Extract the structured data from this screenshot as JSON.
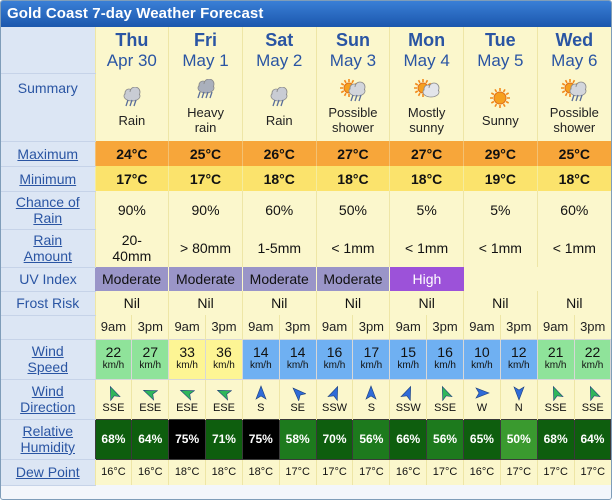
{
  "title": "Gold Coast 7-day Weather Forecast",
  "labels": {
    "summary": "Summary",
    "maximum": "Maximum",
    "minimum": "Minimum",
    "rain_chance": [
      "Chance of",
      "Rain"
    ],
    "rain_amount": [
      "Rain",
      "Amount"
    ],
    "uv": "UV Index",
    "frost": "Frost Risk",
    "wind_speed": [
      "Wind",
      "Speed"
    ],
    "wind_direction": [
      "Wind",
      "Direction"
    ],
    "humidity": [
      "Relative",
      "Humidity"
    ],
    "dew_point": "Dew Point"
  },
  "times": [
    "9am",
    "3pm"
  ],
  "speed_unit": "km/h",
  "colors": {
    "max_bg": "#f7a63a",
    "min_bg": "#fbe36c",
    "uv_moderate": "#9a95c8",
    "uv_high": "#9c52d9"
  },
  "days": [
    {
      "name": "Thu",
      "date": "Apr 30",
      "summary": [
        "Rain"
      ],
      "icon": "rain-cloud-icon",
      "max": "24°C",
      "min": "17°C",
      "rain_chance": "90%",
      "rain_amount": [
        "20-",
        "40mm"
      ],
      "uv": "Moderate",
      "frost": "Nil",
      "wind_speed": [
        "22",
        "27"
      ],
      "wind_dir": [
        "SSE",
        "ESE"
      ],
      "humidity": [
        "68%",
        "64%"
      ],
      "dew": [
        "16°C",
        "16°C"
      ]
    },
    {
      "name": "Fri",
      "date": "May 1",
      "summary": [
        "Heavy",
        "rain"
      ],
      "icon": "heavy-rain-cloud-icon",
      "max": "25°C",
      "min": "17°C",
      "rain_chance": "90%",
      "rain_amount": [
        "> 80mm"
      ],
      "uv": "Moderate",
      "frost": "Nil",
      "wind_speed": [
        "33",
        "36"
      ],
      "wind_dir": [
        "ESE",
        "ESE"
      ],
      "humidity": [
        "75%",
        "71%"
      ],
      "dew": [
        "18°C",
        "18°C"
      ]
    },
    {
      "name": "Sat",
      "date": "May 2",
      "summary": [
        "Rain"
      ],
      "icon": "rain-cloud-icon",
      "max": "26°C",
      "min": "18°C",
      "rain_chance": "60%",
      "rain_amount": [
        "1-5mm"
      ],
      "uv": "Moderate",
      "frost": "Nil",
      "wind_speed": [
        "14",
        "14"
      ],
      "wind_dir": [
        "S",
        "SE"
      ],
      "humidity": [
        "75%",
        "58%"
      ],
      "dew": [
        "18°C",
        "17°C"
      ]
    },
    {
      "name": "Sun",
      "date": "May 3",
      "summary": [
        "Possible",
        "shower"
      ],
      "icon": "sun-cloud-rain-icon",
      "max": "27°C",
      "min": "18°C",
      "rain_chance": "50%",
      "rain_amount": [
        "< 1mm"
      ],
      "uv": "Moderate",
      "frost": "Nil",
      "wind_speed": [
        "16",
        "17"
      ],
      "wind_dir": [
        "SSW",
        "S"
      ],
      "humidity": [
        "70%",
        "56%"
      ],
      "dew": [
        "17°C",
        "17°C"
      ]
    },
    {
      "name": "Mon",
      "date": "May 4",
      "summary": [
        "Mostly",
        "sunny"
      ],
      "icon": "sun-cloud-icon",
      "max": "27°C",
      "min": "18°C",
      "rain_chance": "5%",
      "rain_amount": [
        "< 1mm"
      ],
      "uv": "High",
      "frost": "Nil",
      "wind_speed": [
        "15",
        "16"
      ],
      "wind_dir": [
        "SSW",
        "SSE"
      ],
      "humidity": [
        "66%",
        "56%"
      ],
      "dew": [
        "16°C",
        "17°C"
      ]
    },
    {
      "name": "Tue",
      "date": "May 5",
      "summary": [
        "Sunny"
      ],
      "icon": "sun-icon",
      "max": "29°C",
      "min": "19°C",
      "rain_chance": "5%",
      "rain_amount": [
        "< 1mm"
      ],
      "uv": "",
      "frost": "Nil",
      "wind_speed": [
        "10",
        "12"
      ],
      "wind_dir": [
        "W",
        "N"
      ],
      "humidity": [
        "65%",
        "50%"
      ],
      "dew": [
        "16°C",
        "17°C"
      ]
    },
    {
      "name": "Wed",
      "date": "May 6",
      "summary": [
        "Possible",
        "shower"
      ],
      "icon": "sun-cloud-rain-icon",
      "max": "25°C",
      "min": "18°C",
      "rain_chance": "60%",
      "rain_amount": [
        "< 1mm"
      ],
      "uv": "",
      "frost": "Nil",
      "wind_speed": [
        "21",
        "22"
      ],
      "wind_dir": [
        "SSE",
        "SSE"
      ],
      "humidity": [
        "68%",
        "64%"
      ],
      "dew": [
        "17°C",
        "17°C"
      ]
    }
  ]
}
